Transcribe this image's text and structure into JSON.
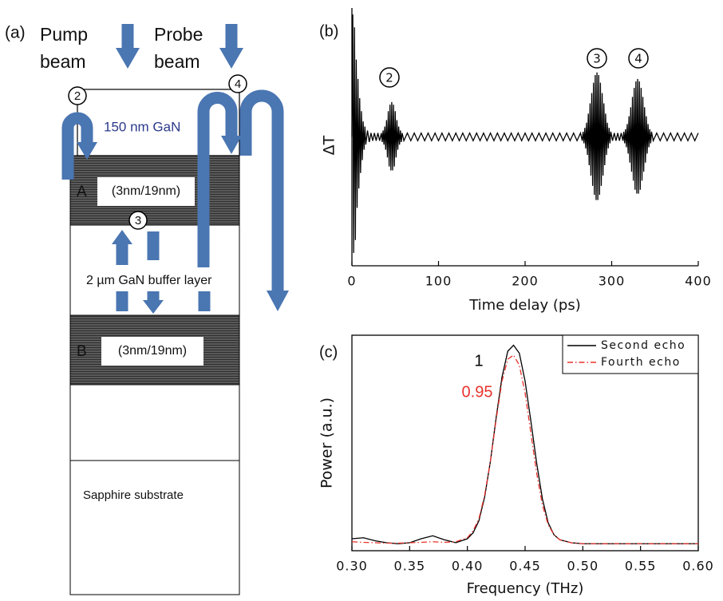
{
  "diagram": {
    "panel_label": "(a)",
    "pump_beam": [
      "Pump",
      "beam"
    ],
    "probe_beam": [
      "Probe",
      "beam"
    ],
    "markers": [
      "2",
      "4",
      "3"
    ],
    "top_layer": "150 nm GaN",
    "layer_a": {
      "name": "A",
      "spec": "(3nm/19nm)"
    },
    "buffer": "2 µm GaN buffer layer",
    "layer_b": {
      "name": "B",
      "spec": "(3nm/19nm)"
    },
    "substrate": "Sapphire substrate"
  },
  "chart_data": [
    {
      "type": "line",
      "panel_label": "(b)",
      "x_label": "Time delay (ps)",
      "y_label": "ΔT",
      "color": "#000000",
      "annotations": [
        "2",
        "3",
        "4"
      ],
      "xlim": [
        0,
        400
      ],
      "xticks": [
        0,
        100,
        200,
        300,
        400
      ],
      "ylim": [
        -1,
        1
      ],
      "x": [
        0,
        1,
        2,
        3,
        4,
        5,
        6,
        7,
        8,
        9,
        10,
        11,
        12,
        13,
        14,
        15,
        16,
        18,
        20,
        22,
        24,
        26,
        28,
        30,
        32,
        34,
        35,
        36,
        37,
        38,
        39,
        40,
        41,
        42,
        43,
        44,
        45,
        46,
        47,
        48,
        49,
        50,
        51,
        52,
        53,
        54,
        55,
        56,
        57,
        58,
        60,
        64,
        68,
        72,
        76,
        80,
        84,
        88,
        92,
        96,
        100,
        104,
        108,
        112,
        116,
        120,
        124,
        128,
        132,
        136,
        140,
        144,
        148,
        152,
        156,
        160,
        164,
        168,
        172,
        176,
        180,
        184,
        188,
        192,
        196,
        200,
        204,
        208,
        212,
        216,
        220,
        224,
        228,
        232,
        236,
        240,
        244,
        248,
        252,
        256,
        260,
        264,
        266,
        267,
        268,
        269,
        270,
        271,
        272,
        273,
        274,
        275,
        276,
        277,
        278,
        279,
        280,
        281,
        282,
        283,
        284,
        285,
        286,
        287,
        288,
        289,
        290,
        291,
        292,
        293,
        294,
        295,
        296,
        297,
        298,
        299,
        301,
        303,
        305,
        307,
        309,
        311,
        313,
        314,
        315,
        316,
        317,
        318,
        319,
        320,
        321,
        322,
        323,
        324,
        325,
        326,
        327,
        328,
        329,
        330,
        331,
        332,
        333,
        334,
        335,
        336,
        337,
        338,
        339,
        340,
        341,
        342,
        343,
        344,
        345,
        346,
        348,
        352,
        356,
        360,
        364,
        368,
        372,
        376,
        380,
        384,
        388,
        392,
        396,
        400
      ],
      "values": [
        0,
        0.95,
        -0.9,
        0.85,
        -0.8,
        0.6,
        -0.55,
        0.45,
        -0.4,
        0.3,
        -0.28,
        0.2,
        -0.18,
        0.12,
        -0.1,
        0.08,
        -0.06,
        0.05,
        -0.04,
        0.03,
        -0.03,
        0.03,
        -0.03,
        0.03,
        -0.03,
        0.03,
        -0.04,
        0.05,
        -0.06,
        0.08,
        -0.1,
        0.13,
        -0.16,
        0.2,
        -0.23,
        0.25,
        -0.26,
        0.27,
        -0.26,
        0.25,
        -0.23,
        0.2,
        -0.16,
        0.13,
        -0.1,
        0.08,
        -0.06,
        0.05,
        -0.04,
        0.03,
        -0.03,
        0.03,
        -0.03,
        0.03,
        -0.03,
        0.03,
        -0.03,
        0.03,
        -0.03,
        0.03,
        -0.03,
        0.03,
        -0.03,
        0.03,
        -0.03,
        0.03,
        -0.03,
        0.03,
        -0.03,
        0.03,
        -0.03,
        0.03,
        -0.03,
        0.03,
        -0.03,
        0.03,
        -0.03,
        0.03,
        -0.03,
        0.03,
        -0.03,
        0.03,
        -0.03,
        0.03,
        -0.03,
        0.03,
        -0.03,
        0.03,
        -0.03,
        0.03,
        -0.03,
        0.03,
        -0.03,
        0.03,
        -0.03,
        0.03,
        -0.03,
        0.03,
        -0.03,
        0.03,
        -0.03,
        0.03,
        -0.03,
        0.04,
        -0.05,
        0.07,
        -0.09,
        0.11,
        -0.14,
        0.18,
        -0.22,
        0.26,
        -0.3,
        0.34,
        -0.38,
        0.42,
        -0.45,
        0.48,
        -0.49,
        0.5,
        -0.49,
        0.48,
        -0.45,
        0.42,
        -0.38,
        0.34,
        -0.3,
        0.26,
        -0.22,
        0.18,
        -0.14,
        0.11,
        -0.09,
        0.07,
        -0.05,
        0.04,
        -0.03,
        0.03,
        -0.03,
        0.03,
        -0.03,
        0.03,
        -0.03,
        0.04,
        -0.05,
        0.06,
        -0.08,
        0.1,
        -0.13,
        0.16,
        -0.2,
        0.23,
        -0.27,
        0.31,
        -0.34,
        0.38,
        -0.41,
        0.43,
        -0.44,
        0.45,
        -0.44,
        0.43,
        -0.41,
        0.38,
        -0.34,
        0.31,
        -0.27,
        0.23,
        -0.2,
        0.16,
        -0.13,
        0.1,
        -0.08,
        0.06,
        -0.05,
        0.04,
        -0.03,
        0.03,
        -0.03,
        0.03,
        -0.03,
        0.03,
        -0.03,
        0.03,
        -0.03,
        0.03,
        -0.03,
        0.03,
        -0.03,
        0.03
      ]
    },
    {
      "type": "line",
      "panel_label": "(c)",
      "x_label": "Frequency (THz)",
      "y_label": "Power (a.u.)",
      "legend": "upper right",
      "annotations": [
        {
          "text": "1",
          "color": "#000000"
        },
        {
          "text": "0.95",
          "color": "#e8322b"
        }
      ],
      "xlim": [
        0.3,
        0.6
      ],
      "xticks": [
        {
          "value": 0.3,
          "label": "0.30"
        },
        {
          "value": 0.35,
          "label": "0.35"
        },
        {
          "value": 0.4,
          "label": "0.40"
        },
        {
          "value": 0.45,
          "label": "0.45"
        },
        {
          "value": 0.5,
          "label": "0.50"
        },
        {
          "value": 0.55,
          "label": "0.55"
        },
        {
          "value": 0.6,
          "label": "0.60"
        }
      ],
      "ylim": [
        -0.03,
        1.05
      ],
      "x": [
        0.3,
        0.31,
        0.32,
        0.33,
        0.34,
        0.35,
        0.36,
        0.37,
        0.38,
        0.39,
        0.4,
        0.405,
        0.41,
        0.415,
        0.42,
        0.425,
        0.43,
        0.435,
        0.44,
        0.445,
        0.45,
        0.455,
        0.46,
        0.465,
        0.47,
        0.475,
        0.48,
        0.49,
        0.5,
        0.51,
        0.52,
        0.53,
        0.54,
        0.55,
        0.56,
        0.57,
        0.58,
        0.59,
        0.6
      ],
      "series": [
        {
          "name": "Second echo",
          "color": "#000000",
          "dash": "solid",
          "values": [
            0.03,
            0.035,
            0.02,
            0.01,
            0.005,
            0.01,
            0.03,
            0.045,
            0.025,
            0.01,
            0.03,
            0.06,
            0.12,
            0.24,
            0.42,
            0.64,
            0.84,
            0.97,
            1.0,
            0.96,
            0.82,
            0.62,
            0.41,
            0.23,
            0.11,
            0.05,
            0.025,
            0.01,
            0.005,
            0.005,
            0.005,
            0.005,
            0.005,
            0.005,
            0.005,
            0.005,
            0.005,
            0.005,
            0.005
          ]
        },
        {
          "name": "Fourth echo",
          "color": "#e8322b",
          "dash": "dashdot",
          "values": [
            0.015,
            0.012,
            0.01,
            0.008,
            0.008,
            0.01,
            0.012,
            0.015,
            0.012,
            0.015,
            0.035,
            0.07,
            0.13,
            0.25,
            0.42,
            0.63,
            0.82,
            0.93,
            0.95,
            0.9,
            0.76,
            0.56,
            0.36,
            0.2,
            0.1,
            0.05,
            0.025,
            0.01,
            0.005,
            0.005,
            0.005,
            0.005,
            0.005,
            0.005,
            0.005,
            0.005,
            0.005,
            0.005,
            0.005
          ]
        }
      ]
    }
  ]
}
